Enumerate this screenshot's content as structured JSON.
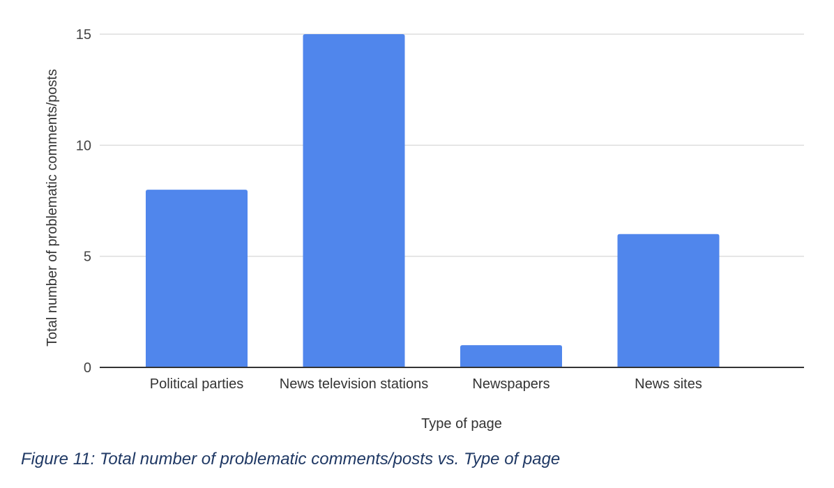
{
  "chart_data": {
    "type": "bar",
    "categories": [
      "Political parties",
      "News television stations",
      "Newspapers",
      "News sites"
    ],
    "values": [
      8,
      15,
      1,
      6
    ],
    "xlabel": "Type of page",
    "ylabel": "Total number of problematic comments/posts",
    "ylim": [
      0,
      15
    ],
    "yticks": [
      0,
      5,
      10,
      15
    ],
    "grid": true,
    "legend": "none",
    "bar_color": "#5086EC",
    "grid_color": "#DDDDDD",
    "axis_color": "#333333"
  },
  "caption": "Figure 11: Total number of problematic comments/posts vs. Type of page",
  "caption_color": "#1F3864"
}
